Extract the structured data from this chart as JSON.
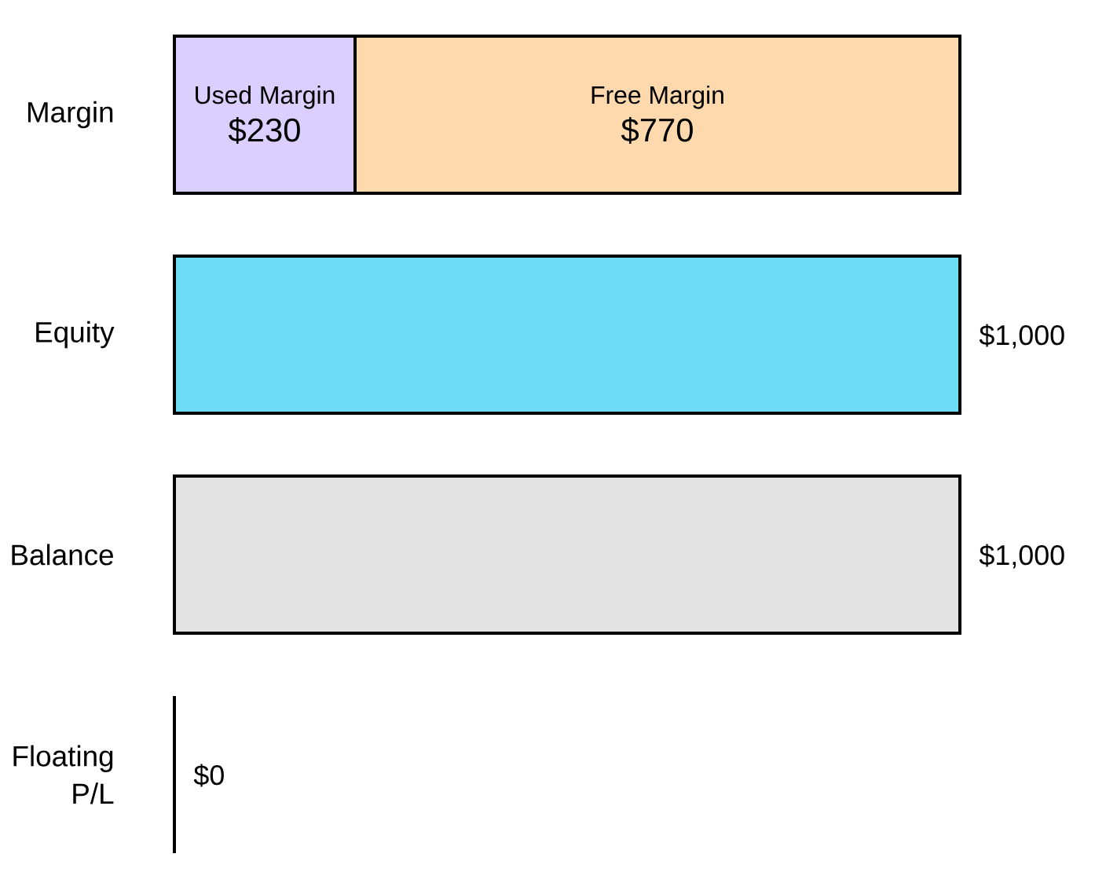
{
  "chart_data": {
    "type": "bar",
    "orientation": "horizontal",
    "stacked": true,
    "categories": [
      "Margin",
      "Equity",
      "Balance",
      "Floating P/L"
    ],
    "tick_labels": "y",
    "series": [
      {
        "name": "Used Margin",
        "color": "#dacfff",
        "values": [
          230,
          null,
          null,
          null
        ],
        "value_labels": [
          "$230",
          null,
          null,
          null
        ]
      },
      {
        "name": "Free Margin",
        "color": "#fed9ad",
        "values": [
          770,
          null,
          null,
          null
        ],
        "value_labels": [
          "$770",
          null,
          null,
          null
        ]
      },
      {
        "colors": [
          null,
          "#6fdcf5",
          "#e3e3e3",
          "#000000"
        ],
        "values": [
          null,
          1000,
          1000,
          0
        ],
        "value_labels": [
          null,
          "$1,000",
          "$1,000",
          "$0"
        ]
      }
    ]
  }
}
